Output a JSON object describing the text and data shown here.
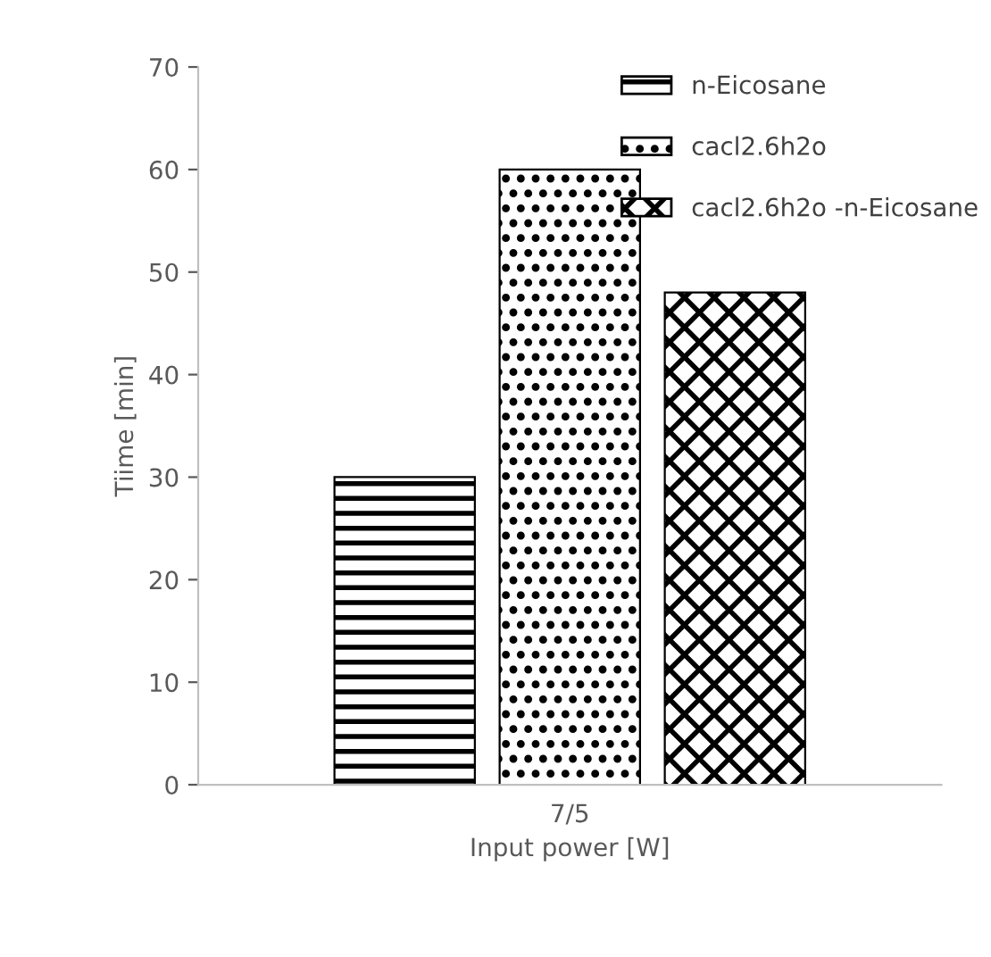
{
  "chart_data": {
    "type": "bar",
    "xlabel": "Input power [W]",
    "ylabel": "Tiime [min]",
    "categories": [
      "7/5"
    ],
    "series": [
      {
        "name": "n-Eicosane",
        "color": "#000000",
        "values": [
          30
        ]
      },
      {
        "name": "cacl2.6h2o",
        "color": "#000000",
        "values": [
          60
        ]
      },
      {
        "name": "cacl2.6h2o -n-Eicosane",
        "color": "#000000",
        "values": [
          48
        ]
      }
    ],
    "ylim": [
      0,
      70
    ],
    "yticks": [
      0,
      10,
      20,
      30,
      40,
      50,
      60,
      70
    ],
    "grid": false,
    "legend": "top right"
  }
}
